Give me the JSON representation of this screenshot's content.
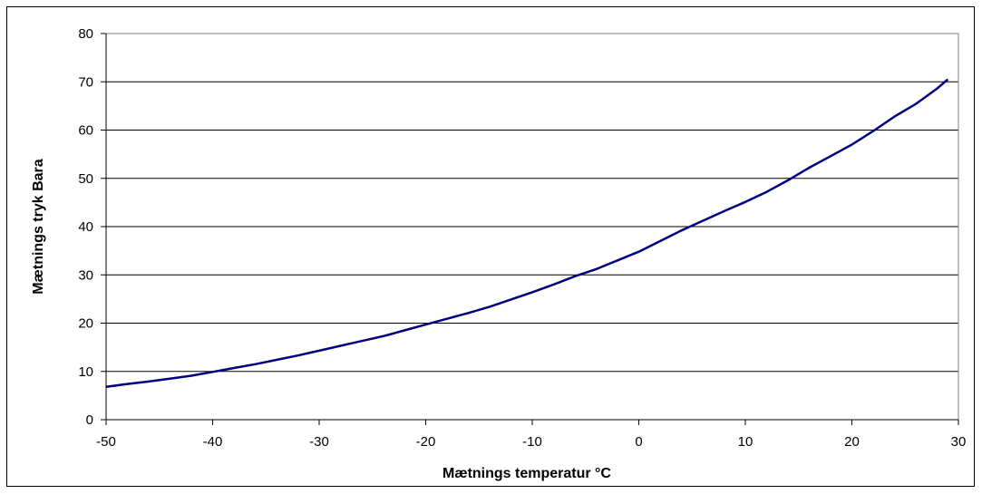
{
  "chart_data": {
    "type": "line",
    "title": "",
    "xlabel": "Mætnings temperatur °C",
    "ylabel": "Mætnings tryk Bara",
    "xlim": [
      -50,
      30
    ],
    "ylim": [
      0,
      80
    ],
    "x_ticks": [
      -50,
      -40,
      -30,
      -20,
      -10,
      0,
      10,
      20,
      30
    ],
    "y_ticks": [
      0,
      10,
      20,
      30,
      40,
      50,
      60,
      70,
      80
    ],
    "grid": "horizontal",
    "legend": "none",
    "series": [
      {
        "color": "#000080",
        "x": [
          -50,
          -48,
          -46,
          -44,
          -42,
          -40,
          -38,
          -36,
          -34,
          -32,
          -30,
          -28,
          -26,
          -24,
          -22,
          -20,
          -18,
          -16,
          -14,
          -12,
          -10,
          -8,
          -6,
          -4,
          -2,
          0,
          2,
          4,
          6,
          8,
          10,
          12,
          14,
          16,
          18,
          20,
          22,
          24,
          26,
          28,
          29
        ],
        "y": [
          6.8,
          7.4,
          7.9,
          8.5,
          9.1,
          9.9,
          10.7,
          11.5,
          12.4,
          13.3,
          14.3,
          15.3,
          16.3,
          17.3,
          18.5,
          19.7,
          20.9,
          22.1,
          23.4,
          24.9,
          26.4,
          28.0,
          29.7,
          31.2,
          33.0,
          34.8,
          37.0,
          39.2,
          41.2,
          43.2,
          45.1,
          47.2,
          49.6,
          52.2,
          54.6,
          57.0,
          59.8,
          62.8,
          65.4,
          68.6,
          70.5
        ]
      }
    ]
  }
}
